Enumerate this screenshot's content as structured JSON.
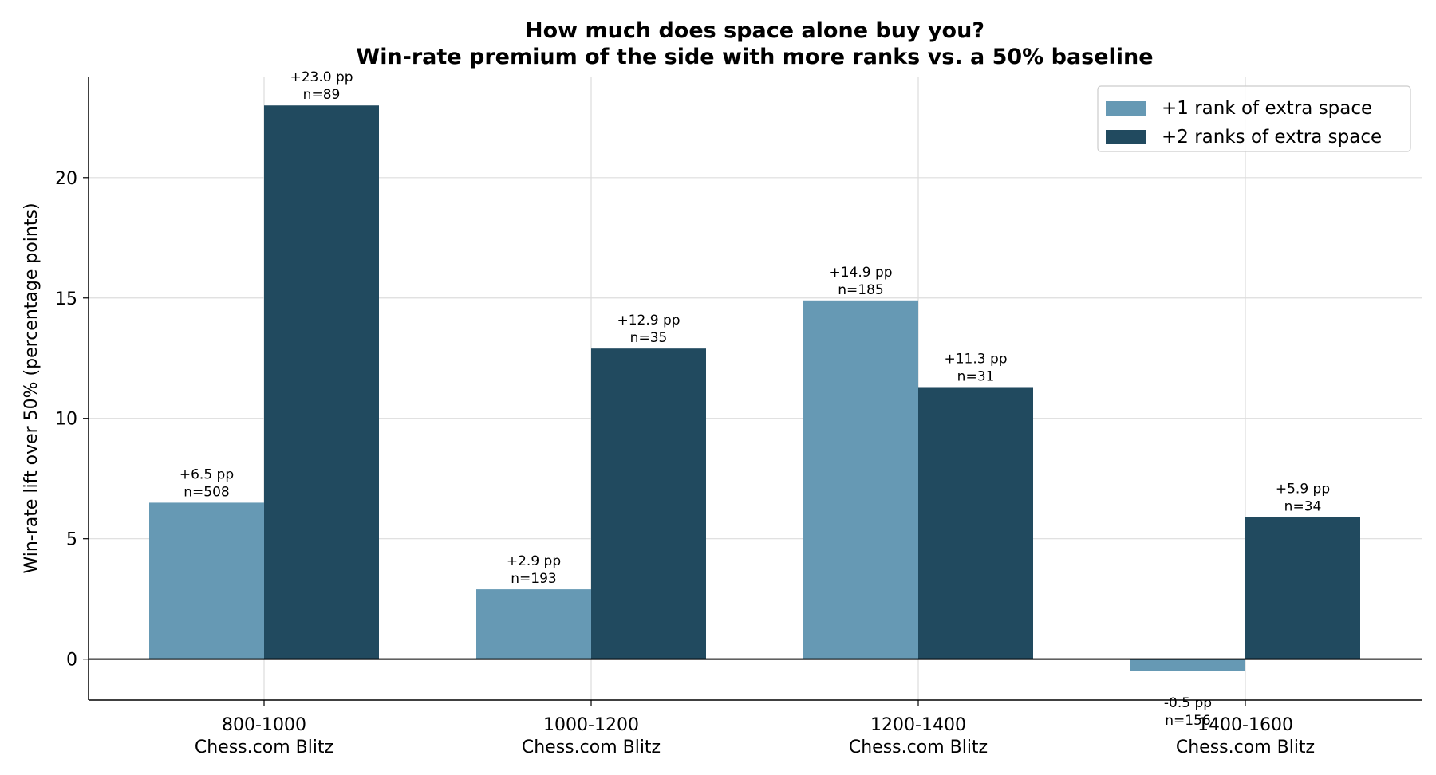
{
  "chart_data": {
    "type": "bar",
    "title_lines": [
      "How much does space alone buy you?",
      "Win-rate premium of the side with more ranks vs. a 50% baseline"
    ],
    "ylabel": "Win-rate lift over 50% (percentage points)",
    "xlabel": "",
    "categories": [
      [
        "800-1000",
        "Chess.com Blitz"
      ],
      [
        "1000-1200",
        "Chess.com Blitz"
      ],
      [
        "1200-1400",
        "Chess.com Blitz"
      ],
      [
        "1400-1600",
        "Chess.com Blitz"
      ]
    ],
    "ylim": [
      -1.7,
      24.2
    ],
    "yticks": [
      0,
      5,
      10,
      15,
      20
    ],
    "grid": true,
    "legend_position": "top-right",
    "series": [
      {
        "name": "+1 rank of extra space",
        "color": "#6699b4",
        "values": [
          6.5,
          2.9,
          14.9,
          -0.5
        ],
        "value_labels": [
          "+6.5 pp",
          "+2.9 pp",
          "+14.9 pp",
          "-0.5 pp"
        ],
        "n_labels": [
          "n=508",
          "n=193",
          "n=185",
          "n=156"
        ]
      },
      {
        "name": "+2 ranks of extra space",
        "color": "#214a5f",
        "values": [
          23.0,
          12.9,
          11.3,
          5.9
        ],
        "value_labels": [
          "+23.0 pp",
          "+12.9 pp",
          "+11.3 pp",
          "+5.9 pp"
        ],
        "n_labels": [
          "n=89",
          "n=35",
          "n=31",
          "n=34"
        ]
      }
    ]
  }
}
